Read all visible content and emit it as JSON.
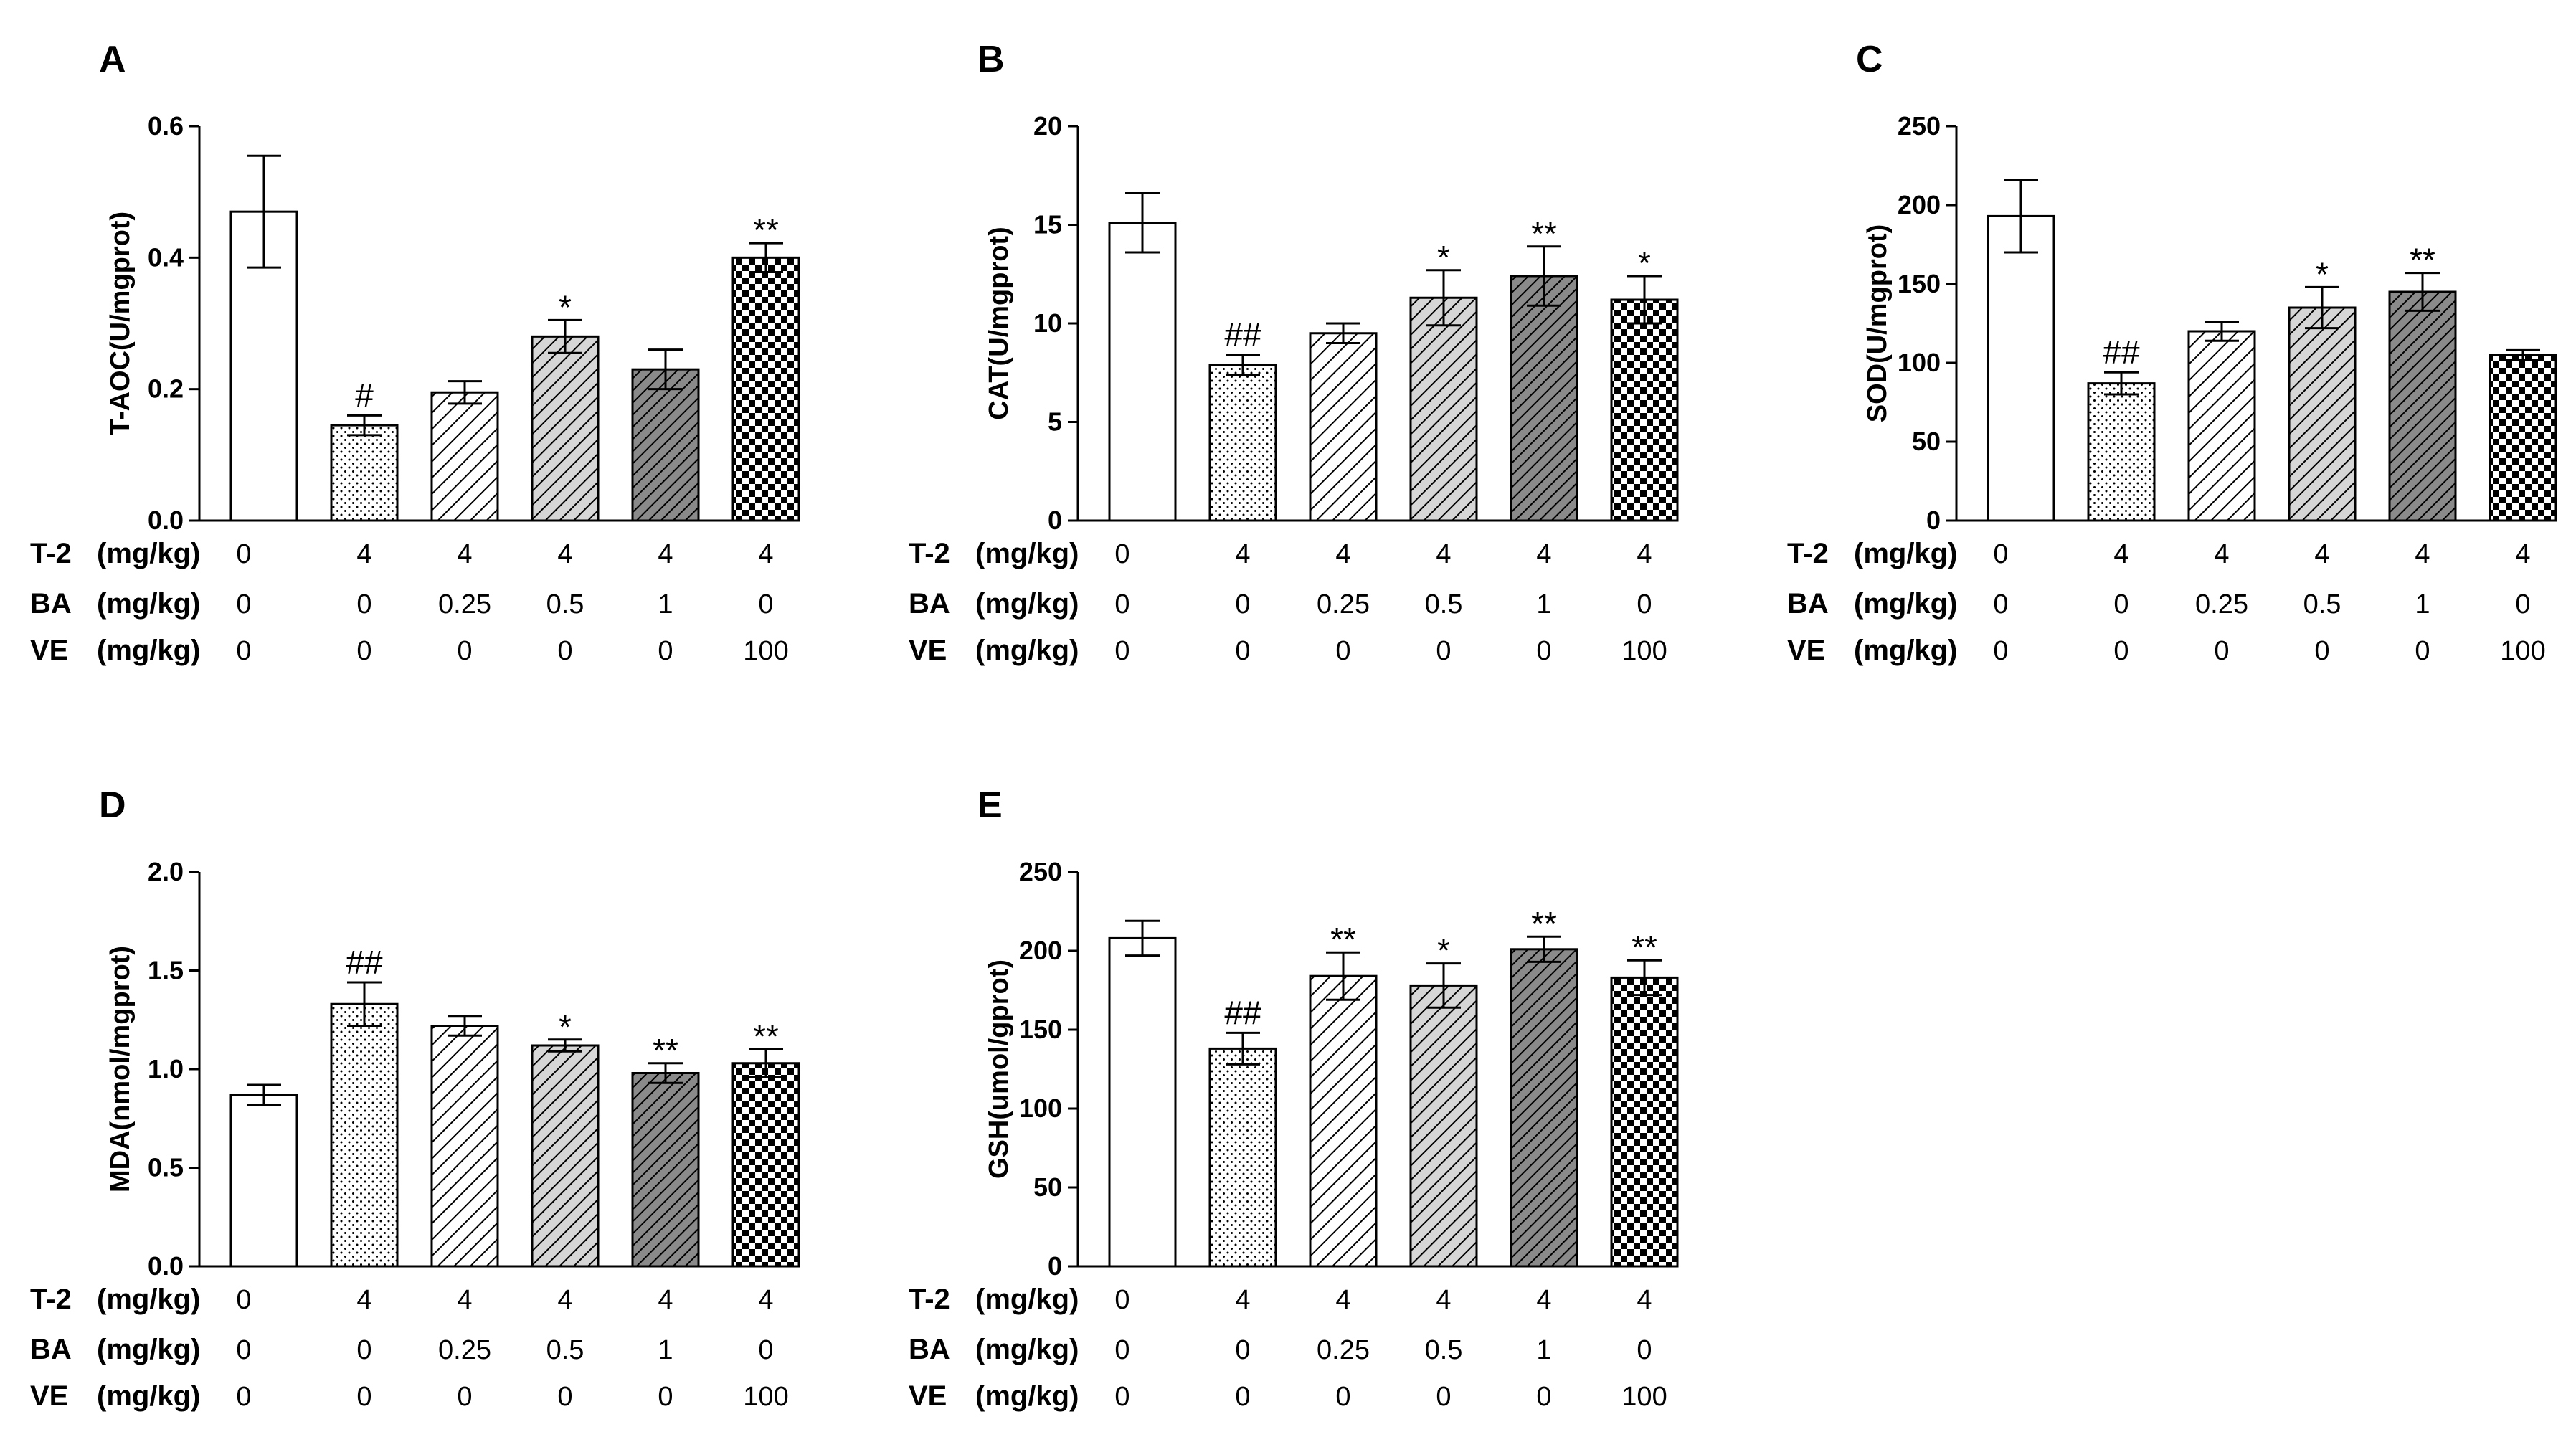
{
  "legend_rows": [
    {
      "name": "T-2",
      "unit": "(mg/kg)",
      "values": [
        "0",
        "4",
        "4",
        "4",
        "4",
        "4"
      ]
    },
    {
      "name": "BA",
      "unit": "(mg/kg)",
      "values": [
        "0",
        "0",
        "0.25",
        "0.5",
        "1",
        "0"
      ]
    },
    {
      "name": "VE",
      "unit": "(mg/kg)",
      "values": [
        "0",
        "0",
        "0",
        "0",
        "0",
        "100"
      ]
    }
  ],
  "bar_patterns": [
    "open",
    "dots",
    "hatch-light",
    "hatch-medium",
    "hatch-dark",
    "checker"
  ],
  "colors": {
    "ink": "#000000",
    "background": "#ffffff",
    "medium_fill": "#d6d6d6",
    "dark_fill": "#8a8a8a"
  },
  "chart_data": [
    {
      "panel": "A",
      "type": "bar",
      "ylabel": "T-AOC(U/mgprot)",
      "ylim": [
        0,
        0.6
      ],
      "yticks": [
        "0.0",
        "0.2",
        "0.4",
        "0.6"
      ],
      "values": [
        0.47,
        0.145,
        0.195,
        0.28,
        0.23,
        0.4
      ],
      "errors": [
        0.085,
        0.015,
        0.017,
        0.025,
        0.03,
        0.022
      ],
      "annotations": [
        "",
        "#",
        "",
        "*",
        "",
        "**"
      ]
    },
    {
      "panel": "B",
      "type": "bar",
      "ylabel": "CAT(U/mgprot)",
      "ylim": [
        0,
        20
      ],
      "yticks": [
        "0",
        "5",
        "10",
        "15",
        "20"
      ],
      "values": [
        15.1,
        7.9,
        9.5,
        11.3,
        12.4,
        11.2
      ],
      "errors": [
        1.5,
        0.5,
        0.5,
        1.4,
        1.5,
        1.2
      ],
      "annotations": [
        "",
        "##",
        "",
        "*",
        "**",
        "*"
      ]
    },
    {
      "panel": "C",
      "type": "bar",
      "ylabel": "SOD(U/mgprot)",
      "ylim": [
        0,
        250
      ],
      "yticks": [
        "0",
        "50",
        "100",
        "150",
        "200",
        "250"
      ],
      "values": [
        193,
        87,
        120,
        135,
        145,
        105
      ],
      "errors": [
        23,
        7,
        6,
        13,
        12,
        3
      ],
      "annotations": [
        "",
        "##",
        "",
        "*",
        "**",
        ""
      ]
    },
    {
      "panel": "D",
      "type": "bar",
      "ylabel": "MDA(nmol/mgprot)",
      "ylim": [
        0,
        2.0
      ],
      "yticks": [
        "0.0",
        "0.5",
        "1.0",
        "1.5",
        "2.0"
      ],
      "values": [
        0.87,
        1.33,
        1.22,
        1.12,
        0.98,
        1.03
      ],
      "errors": [
        0.05,
        0.11,
        0.05,
        0.03,
        0.05,
        0.07
      ],
      "annotations": [
        "",
        "##",
        "",
        "*",
        "**",
        "**"
      ]
    },
    {
      "panel": "E",
      "type": "bar",
      "ylabel": "GSH(umol/gprot)",
      "ylim": [
        0,
        250
      ],
      "yticks": [
        "0",
        "50",
        "100",
        "150",
        "200",
        "250"
      ],
      "values": [
        208,
        138,
        184,
        178,
        201,
        183
      ],
      "errors": [
        11,
        10,
        15,
        14,
        8,
        11
      ],
      "annotations": [
        "",
        "##",
        "**",
        "*",
        "**",
        "**"
      ]
    }
  ]
}
